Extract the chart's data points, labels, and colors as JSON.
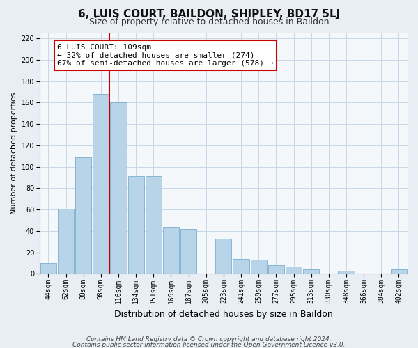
{
  "title": "6, LUIS COURT, BAILDON, SHIPLEY, BD17 5LJ",
  "subtitle": "Size of property relative to detached houses in Baildon",
  "xlabel": "Distribution of detached houses by size in Baildon",
  "ylabel": "Number of detached properties",
  "categories": [
    "44sqm",
    "62sqm",
    "80sqm",
    "98sqm",
    "116sqm",
    "134sqm",
    "151sqm",
    "169sqm",
    "187sqm",
    "205sqm",
    "223sqm",
    "241sqm",
    "259sqm",
    "277sqm",
    "295sqm",
    "313sqm",
    "330sqm",
    "348sqm",
    "366sqm",
    "384sqm",
    "402sqm"
  ],
  "values": [
    10,
    61,
    109,
    168,
    160,
    91,
    91,
    44,
    42,
    0,
    33,
    14,
    13,
    8,
    7,
    4,
    0,
    3,
    0,
    0,
    4
  ],
  "bar_color": "#b8d4e8",
  "bar_edge_color": "#7aadce",
  "vline_color": "#cc0000",
  "vline_x_idx": 4,
  "annotation_text": "6 LUIS COURT: 109sqm\n← 32% of detached houses are smaller (274)\n67% of semi-detached houses are larger (578) →",
  "annotation_box_facecolor": "#ffffff",
  "annotation_box_edgecolor": "#cc0000",
  "ylim": [
    0,
    225
  ],
  "yticks": [
    0,
    20,
    40,
    60,
    80,
    100,
    120,
    140,
    160,
    180,
    200,
    220
  ],
  "footer_line1": "Contains HM Land Registry data © Crown copyright and database right 2024.",
  "footer_line2": "Contains public sector information licensed under the Open Government Licence v3.0.",
  "background_color": "#e8eef4",
  "plot_background": "#f5f8fb",
  "grid_color": "#c8d8e8",
  "title_fontsize": 11,
  "subtitle_fontsize": 9,
  "xlabel_fontsize": 9,
  "ylabel_fontsize": 8,
  "tick_fontsize": 7,
  "annot_fontsize": 8,
  "footer_fontsize": 6.5
}
